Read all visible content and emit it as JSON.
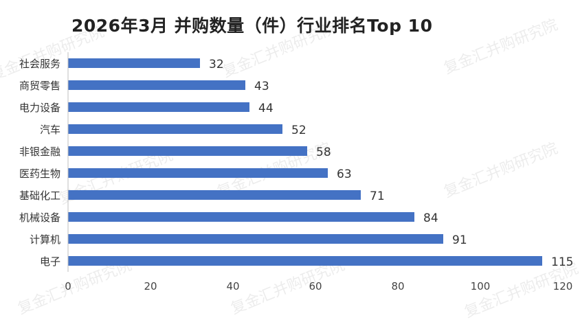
{
  "title": "2026年3月 并购数量（件）行业排名Top 10",
  "watermark": "复金汇并购研究院",
  "colors": {
    "bar": "#4472C4",
    "label": "#333333",
    "axis": "#444444"
  },
  "chart_data": {
    "type": "bar",
    "orientation": "horizontal",
    "title": "2026年3月 并购数量（件）行业排名Top 10",
    "categories": [
      "社会服务",
      "商贸零售",
      "电力设备",
      "汽车",
      "非银金融",
      "医药生物",
      "基础化工",
      "机械设备",
      "计算机",
      "电子"
    ],
    "values": [
      32,
      43,
      44,
      52,
      58,
      63,
      71,
      84,
      91,
      115
    ],
    "xlim": [
      0,
      120
    ],
    "xticks": [
      "0",
      "20",
      "40",
      "60",
      "80",
      "100",
      "120"
    ],
    "xlabel": "",
    "ylabel": "",
    "grid": false,
    "data_labels": true,
    "legend": "none"
  }
}
